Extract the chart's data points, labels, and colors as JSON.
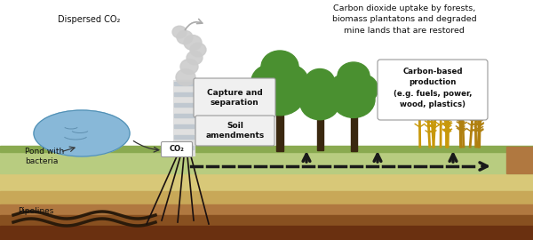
{
  "bg_color": "#ffffff",
  "grass_color": "#b8cc80",
  "grass_dark": "#8aaa50",
  "ground_yellow": "#d8c878",
  "ground_tan": "#c8a858",
  "ground_brown1": "#b07840",
  "ground_brown2": "#885020",
  "ground_brown3": "#6a3010",
  "pond_color": "#88b8d8",
  "pond_outline": "#5090b4",
  "chimney_color": "#e0e0e0",
  "chimney_outline": "#aaaaaa",
  "chimney_dark": "#c0c8d0",
  "smoke_color": "#cccccc",
  "box_fill": "#f0f0f0",
  "box_outline": "#999999",
  "white": "#ffffff",
  "tree_trunk": "#3a2810",
  "tree_green1": "#4a9030",
  "tree_green2": "#386820",
  "crop_color": "#c8980a",
  "crop_color2": "#b08010",
  "arrow_dark": "#1a1a1a",
  "text_dark": "#111111",
  "labels": {
    "dispersed_co2": "Dispersed CO₂",
    "pond": "Pond with\nbacteria",
    "co2": "CO₂",
    "pipelines": "Pipelines",
    "capture": "Capture and\nseparation",
    "soil": "Soil\namendments",
    "carbon_based": "Carbon-based\nproduction\n(e.g. fuels, power,\nwood, plastics)",
    "top_text": "Carbon dioxide uptake by forests,\nbiomass plantatons and degraded\nmine lands that are restored"
  },
  "figsize": [
    6.0,
    2.7
  ],
  "dpi": 100
}
